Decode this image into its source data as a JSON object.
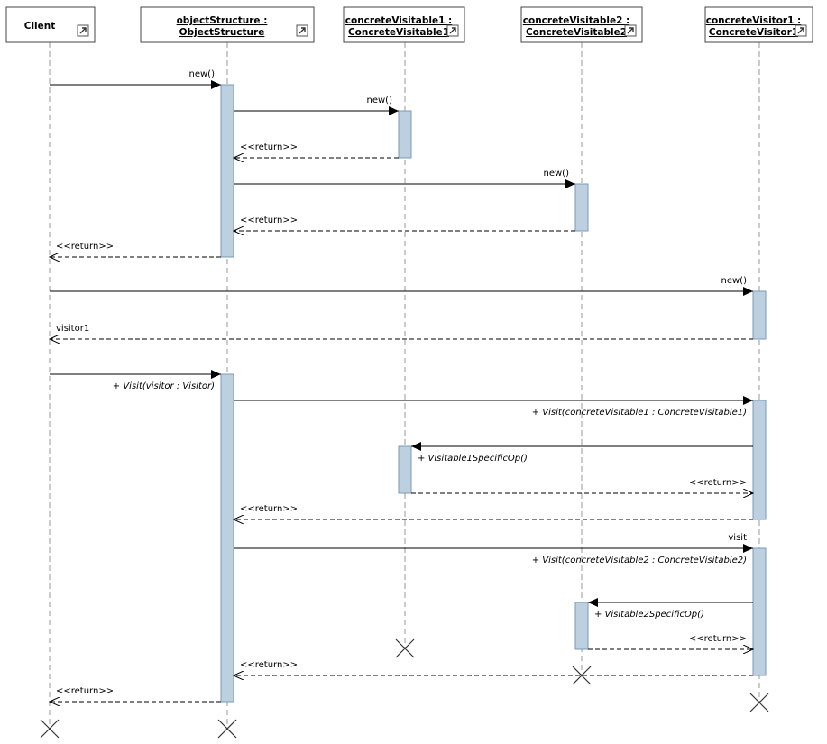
{
  "lifelines": [
    {
      "name": "Client"
    },
    {
      "name": "objectStructure :",
      "type": "ObjectStructure"
    },
    {
      "name": "concreteVisitable1 :",
      "type": "ConcreteVisitable1"
    },
    {
      "name": "concreteVisitable2 :",
      "type": "ConcreteVisitable2"
    },
    {
      "name": "concreteVisitor1 :",
      "type": "ConcreteVisitor1"
    }
  ],
  "messages": [
    {
      "label": "new()"
    },
    {
      "label": "new()"
    },
    {
      "label": "<<return>>"
    },
    {
      "label": "new()"
    },
    {
      "label": "<<return>>"
    },
    {
      "label": "<<return>>"
    },
    {
      "label": "new()"
    },
    {
      "label": "visitor1"
    },
    {
      "note": "+ Visit(visitor : Visitor)"
    },
    {
      "note": "+ Visit(concreteVisitable1 : ConcreteVisitable1)"
    },
    {
      "note": "+ Visitable1SpecificOp()"
    },
    {
      "label": "<<return>>"
    },
    {
      "label": "<<return>>"
    },
    {
      "label": "visit",
      "note": "+ Visit(concreteVisitable2 : ConcreteVisitable2)"
    },
    {
      "note": "+ Visitable2SpecificOp()"
    },
    {
      "label": "<<return>>"
    },
    {
      "label": "<<return>>"
    },
    {
      "label": "<<return>>"
    }
  ]
}
